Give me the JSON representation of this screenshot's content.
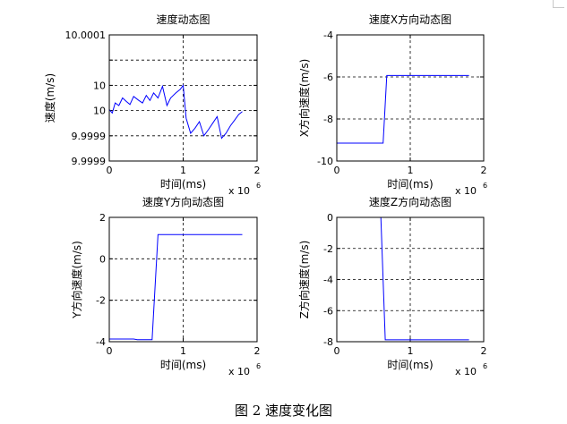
{
  "figure": {
    "caption": "图 2  速度变化图"
  },
  "chart_data": [
    {
      "id": "speed",
      "type": "line",
      "title": "速度动态图",
      "xlabel": "时间(ms)",
      "ylabel": "速度(m/s)",
      "x_exponent_label": "x 10",
      "x_exponent": "6",
      "xlim": [
        0,
        2
      ],
      "ylim": [
        9.99985,
        10.0001
      ],
      "xticks": [
        0,
        1,
        2
      ],
      "xtick_labels": [
        "0",
        "1",
        "2"
      ],
      "yticks": [
        9.99985,
        9.9999,
        9.99995,
        10.0,
        10.00005,
        10.0001
      ],
      "ytick_labels": [
        "9.9999",
        "9.9999",
        "10",
        "10",
        "10.0001"
      ],
      "ytick_label_values": [
        9.99985,
        9.9999,
        9.99995,
        10.0,
        10.0001
      ],
      "grid": true,
      "color": "#0000ff",
      "series": [
        {
          "x": [
            0.0,
            0.04,
            0.08,
            0.13,
            0.18,
            0.23,
            0.28,
            0.33,
            0.4,
            0.45,
            0.5,
            0.55,
            0.6,
            0.66,
            0.72,
            0.78,
            0.83,
            0.9,
            0.96,
            1.0,
            1.04,
            1.1,
            1.16,
            1.22,
            1.28,
            1.34,
            1.4,
            1.46,
            1.52,
            1.58,
            1.64,
            1.7,
            1.75,
            1.8
          ],
          "y": [
            9.999952,
            9.999945,
            9.999965,
            9.99996,
            9.999975,
            9.999968,
            9.999962,
            9.999978,
            9.99997,
            9.999965,
            9.99998,
            9.99997,
            9.999985,
            9.999975,
            9.999998,
            9.99996,
            9.999975,
            9.999985,
            9.999992,
            10.0,
            9.999935,
            9.999905,
            9.999915,
            9.999928,
            9.9999,
            9.999912,
            9.999925,
            9.999938,
            9.999895,
            9.999905,
            9.99992,
            9.999932,
            9.999942,
            9.999948
          ]
        }
      ]
    },
    {
      "id": "speed-x",
      "type": "line",
      "title": "速度X方向动态图",
      "xlabel": "时间(ms)",
      "ylabel": "X方向速度(m/s)",
      "x_exponent_label": "x 10",
      "x_exponent": "6",
      "xlim": [
        0,
        2
      ],
      "ylim": [
        -10,
        -4
      ],
      "xticks": [
        0,
        1,
        2
      ],
      "xtick_labels": [
        "0",
        "1",
        "2"
      ],
      "yticks": [
        -10,
        -8,
        -6,
        -4
      ],
      "ytick_labels": [
        "-10",
        "-8",
        "-6",
        "-4"
      ],
      "grid": true,
      "color": "#0000ff",
      "series": [
        {
          "x": [
            0.0,
            0.63,
            0.68,
            1.8
          ],
          "y": [
            -9.15,
            -9.15,
            -5.93,
            -5.93
          ]
        }
      ]
    },
    {
      "id": "speed-y",
      "type": "line",
      "title": "速度Y方向动态图",
      "xlabel": "时间(ms)",
      "ylabel": "Y方向速度(m/s)",
      "x_exponent_label": "x 10",
      "x_exponent": "6",
      "xlim": [
        0,
        2
      ],
      "ylim": [
        -4,
        2
      ],
      "xticks": [
        0,
        1,
        2
      ],
      "xtick_labels": [
        "0",
        "1",
        "2"
      ],
      "yticks": [
        -4,
        -2,
        0,
        2
      ],
      "ytick_labels": [
        "-4",
        "-2",
        "0",
        "2"
      ],
      "grid": true,
      "color": "#0000ff",
      "series": [
        {
          "x": [
            0.0,
            0.33,
            0.38,
            0.58,
            0.66,
            1.8
          ],
          "y": [
            -3.87,
            -3.87,
            -3.9,
            -3.9,
            1.17,
            1.17
          ]
        }
      ]
    },
    {
      "id": "speed-z",
      "type": "line",
      "title": "速度Z方向动态图",
      "xlabel": "时间(ms)",
      "ylabel": "Z方向速度(m/s)",
      "x_exponent_label": "x 10",
      "x_exponent": "6",
      "xlim": [
        0,
        2
      ],
      "ylim": [
        -8,
        0
      ],
      "xticks": [
        0,
        1,
        2
      ],
      "xtick_labels": [
        "0",
        "1",
        "2"
      ],
      "yticks": [
        -8,
        -6,
        -4,
        -2,
        0
      ],
      "ytick_labels": [
        "-8",
        "-6",
        "-4",
        "-2",
        "0"
      ],
      "grid": true,
      "color": "#0000ff",
      "series": [
        {
          "x": [
            0.0,
            0.6,
            0.66,
            1.8
          ],
          "y": [
            0.0,
            0.0,
            -7.88,
            -7.88
          ]
        }
      ]
    }
  ]
}
